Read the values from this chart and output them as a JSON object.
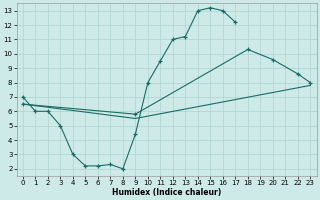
{
  "xlabel": "Humidex (Indice chaleur)",
  "xlim": [
    -0.5,
    23.5
  ],
  "ylim": [
    1.5,
    13.5
  ],
  "yticks": [
    2,
    3,
    4,
    5,
    6,
    7,
    8,
    9,
    10,
    11,
    12,
    13
  ],
  "xticks": [
    0,
    1,
    2,
    3,
    4,
    5,
    6,
    7,
    8,
    9,
    10,
    11,
    12,
    13,
    14,
    15,
    16,
    17,
    18,
    19,
    20,
    21,
    22,
    23
  ],
  "bg_color": "#ceeae8",
  "grid_color": "#aed4d1",
  "line_color": "#1a6b63",
  "line1_x": [
    0,
    1,
    2,
    3,
    4,
    5,
    6,
    7,
    8,
    9,
    10,
    11,
    12,
    13,
    14,
    15,
    16,
    17
  ],
  "line1_y": [
    7.0,
    6.0,
    6.0,
    5.0,
    3.0,
    2.2,
    2.2,
    2.3,
    2.0,
    4.4,
    8.0,
    9.5,
    11.0,
    11.2,
    13.0,
    13.2,
    13.0,
    12.2
  ],
  "line2_x": [
    0,
    9,
    18,
    20,
    22,
    23
  ],
  "line2_y": [
    6.5,
    5.8,
    10.3,
    9.6,
    8.6,
    8.0
  ],
  "line3_x": [
    0,
    9,
    23
  ],
  "line3_y": [
    6.5,
    5.5,
    7.8
  ],
  "marker_on_line2": true,
  "figsize": [
    3.2,
    2.0
  ],
  "dpi": 100
}
